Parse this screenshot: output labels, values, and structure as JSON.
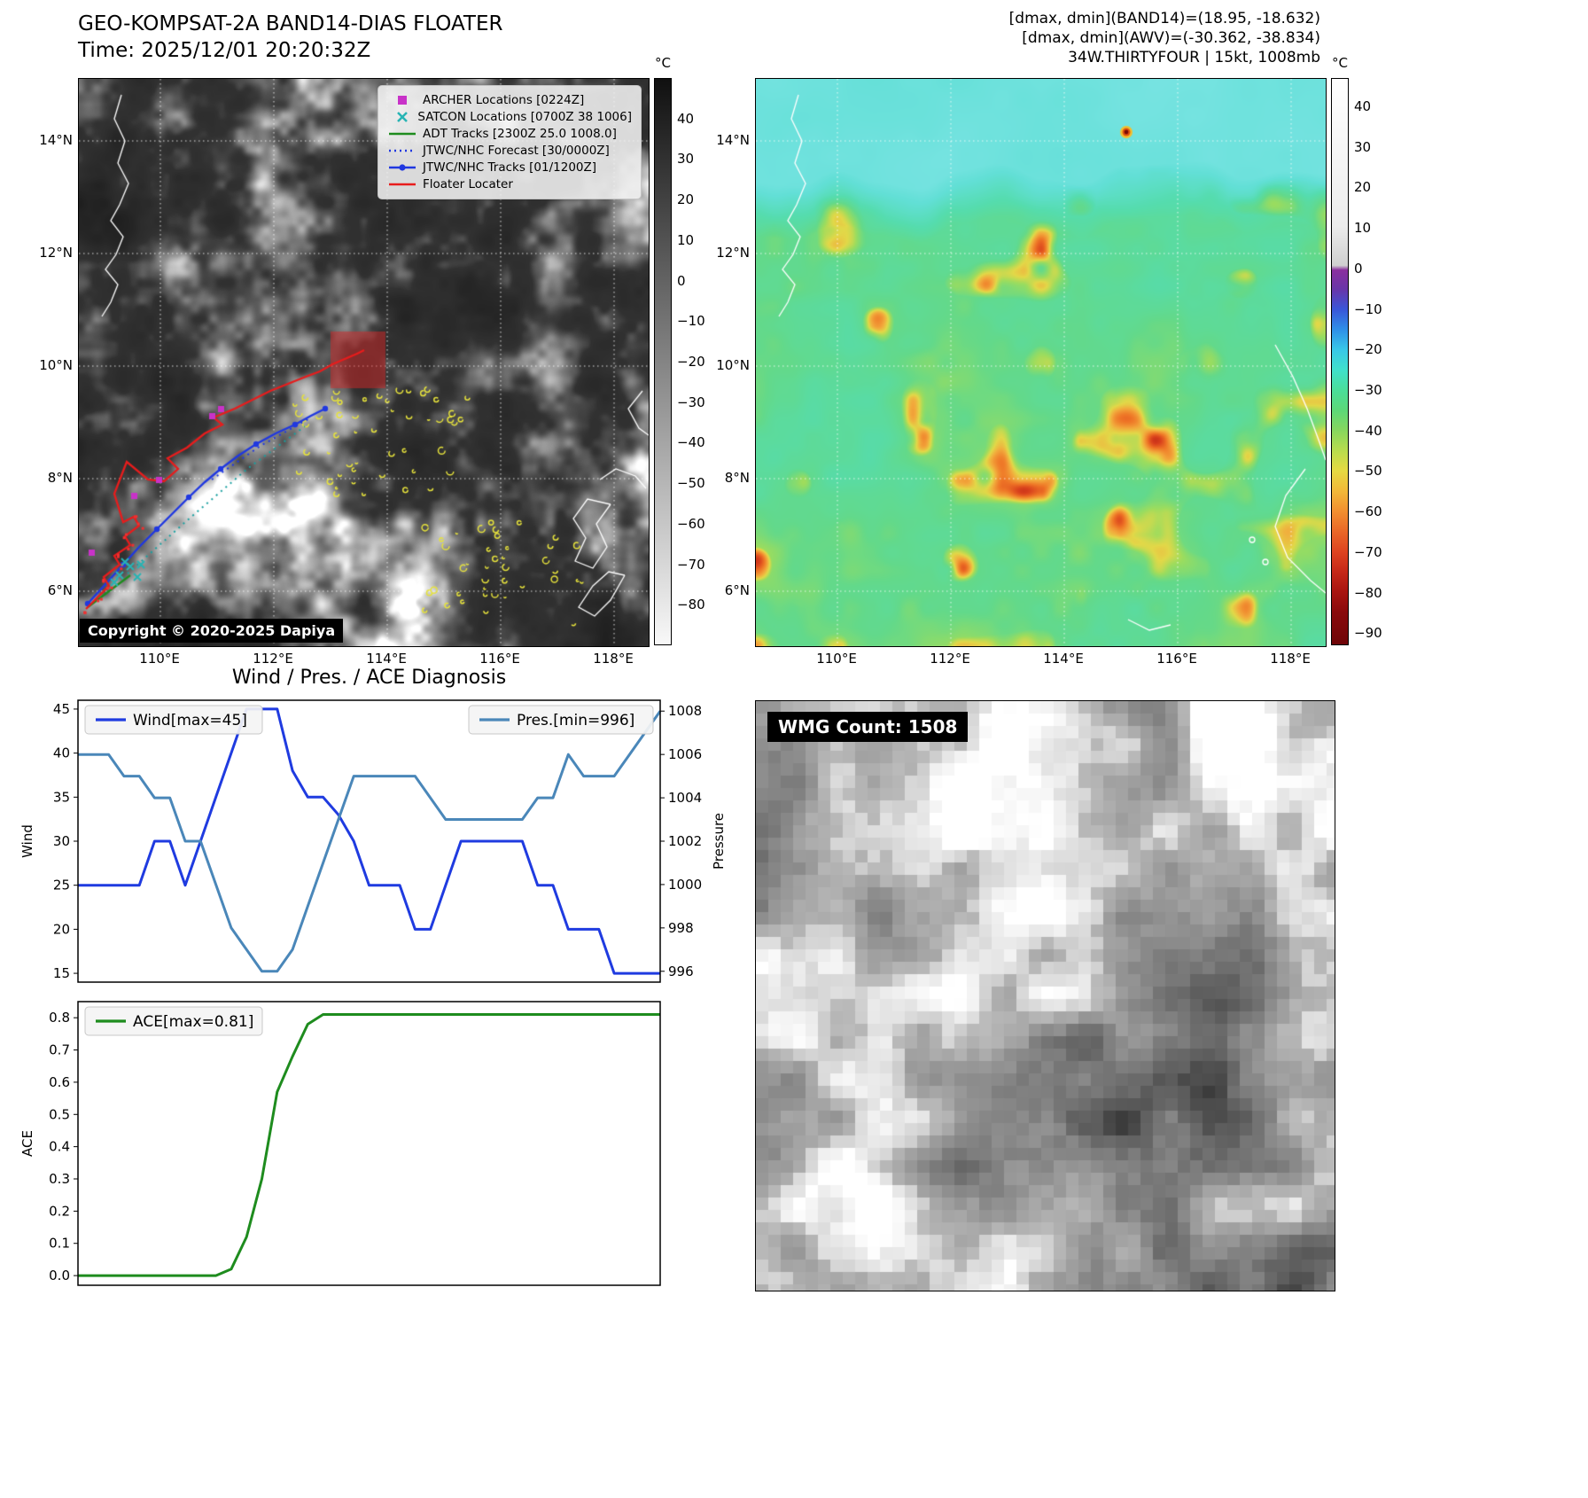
{
  "panel_ir": {
    "title_line1": "GEO-KOMPSAT-2A BAND14-DIAS FLOATER",
    "title_line2": "Time: 2025/12/01 20:20:32Z",
    "copyright": "Copyright © 2020-2025 Dapiya",
    "legend": [
      {
        "label": "ARCHER Locations [0224Z]",
        "marker": "square",
        "color": "#c832c8"
      },
      {
        "label": "SATCON Locations [0700Z 38 1006]",
        "marker": "x",
        "color": "#28b4b4"
      },
      {
        "label": "ADT Tracks [2300Z 25.0 1008.0]",
        "marker": "line",
        "color": "#1e8c1e"
      },
      {
        "label": "JTWC/NHC Forecast [30/0000Z]",
        "marker": "dotted",
        "color": "#2038e0"
      },
      {
        "label": "JTWC/NHC Tracks [01/1200Z]",
        "marker": "line-dot",
        "color": "#2038e0"
      },
      {
        "label": "Floater Locater",
        "marker": "line",
        "color": "#e81c1c"
      }
    ],
    "lat_ticks": [
      "14°N",
      "12°N",
      "10°N",
      "8°N",
      "6°N"
    ],
    "lon_ticks": [
      "110°E",
      "112°E",
      "114°E",
      "116°E",
      "118°E"
    ],
    "colorbar": {
      "unit": "°C",
      "ticks": [
        40,
        30,
        20,
        10,
        0,
        -10,
        -20,
        -30,
        -40,
        -50,
        -60,
        -70,
        -80
      ]
    }
  },
  "panel_awv": {
    "annotation1": "[dmax, dmin](BAND14)=(18.95, -18.632)",
    "annotation2": "[dmax, dmin](AWV)=(-30.362, -38.834)",
    "annotation3": "34W.THIRTYFOUR | 15kt, 1008mb",
    "lat_ticks": [
      "14°N",
      "12°N",
      "10°N",
      "8°N",
      "6°N"
    ],
    "lon_ticks": [
      "110°E",
      "112°E",
      "114°E",
      "116°E",
      "118°E"
    ],
    "colorbar": {
      "unit": "°C",
      "ticks": [
        40,
        30,
        20,
        10,
        0,
        -10,
        -20,
        -30,
        -40,
        -50,
        -60,
        -70,
        -80,
        -90
      ]
    }
  },
  "panel_wmg": {
    "label": "WMG Count: 1508"
  },
  "chart_data": [
    {
      "type": "line",
      "title": "Wind / Pres. / ACE Diagnosis",
      "x_is_index": true,
      "series": [
        {
          "name": "Wind[max=45]",
          "color": "#1f3be0",
          "axis": "left",
          "values": [
            25,
            25,
            25,
            25,
            25,
            30,
            30,
            25,
            30,
            35,
            40,
            45,
            45,
            45,
            38,
            35,
            35,
            33,
            30,
            25,
            25,
            25,
            20,
            20,
            25,
            30,
            30,
            30,
            30,
            30,
            25,
            25,
            20,
            20,
            20,
            15,
            15,
            15,
            15
          ]
        },
        {
          "name": "Pres.[min=996]",
          "color": "#4a87b9",
          "axis": "right",
          "values": [
            1006,
            1006,
            1006,
            1005,
            1005,
            1004,
            1004,
            1002,
            1002,
            1000,
            998,
            997,
            996,
            996,
            997,
            999,
            1001,
            1003,
            1005,
            1005,
            1005,
            1005,
            1005,
            1004,
            1003,
            1003,
            1003,
            1003,
            1003,
            1003,
            1004,
            1004,
            1006,
            1005,
            1005,
            1005,
            1006,
            1007,
            1008
          ]
        }
      ],
      "left_axis": {
        "label": "Wind",
        "ticks": [
          15,
          20,
          25,
          30,
          35,
          40,
          45
        ],
        "range": [
          14,
          46
        ]
      },
      "right_axis": {
        "label": "Pressure",
        "ticks": [
          996,
          998,
          1000,
          1002,
          1004,
          1006,
          1008
        ],
        "range": [
          995.5,
          1008.5
        ]
      },
      "legend_position": "top-left and top-right inside"
    },
    {
      "type": "line",
      "title": "",
      "x_is_index": true,
      "series": [
        {
          "name": "ACE[max=0.81]",
          "color": "#1e8c1e",
          "axis": "left",
          "values": [
            0,
            0,
            0,
            0,
            0,
            0,
            0,
            0,
            0,
            0,
            0.02,
            0.12,
            0.3,
            0.57,
            0.68,
            0.78,
            0.81,
            0.81,
            0.81,
            0.81,
            0.81,
            0.81,
            0.81,
            0.81,
            0.81,
            0.81,
            0.81,
            0.81,
            0.81,
            0.81,
            0.81,
            0.81,
            0.81,
            0.81,
            0.81,
            0.81,
            0.81,
            0.81,
            0.81
          ]
        }
      ],
      "left_axis": {
        "label": "ACE",
        "ticks": [
          0.0,
          0.1,
          0.2,
          0.3,
          0.4,
          0.5,
          0.6,
          0.7,
          0.8
        ],
        "range": [
          -0.03,
          0.85
        ]
      },
      "legend_position": "top-left inside"
    }
  ]
}
